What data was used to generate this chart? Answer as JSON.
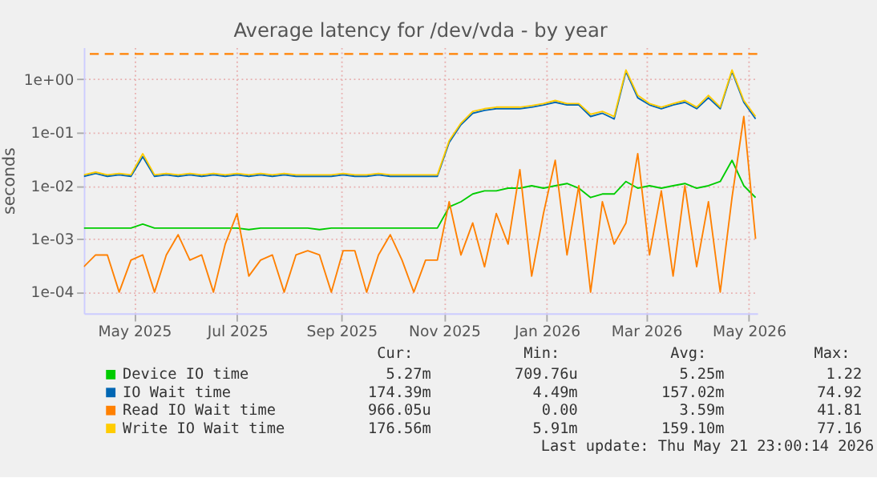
{
  "chart_data": {
    "type": "line",
    "title": "Average latency for /dev/vda - by year",
    "ylabel": "seconds",
    "log": "y",
    "grid": true,
    "legend": "bottom",
    "marker": "none",
    "line_style": "solid",
    "xlim": [
      "2025-04-16",
      "2026-05-21"
    ],
    "xticks": [
      {
        "value": "2025-05-16",
        "label": "May 2025"
      },
      {
        "value": "2025-07-16",
        "label": "Jul 2025"
      },
      {
        "value": "2025-09-16",
        "label": "Sep 2025"
      },
      {
        "value": "2025-11-16",
        "label": "Nov 2025"
      },
      {
        "value": "2026-01-16",
        "label": "Jan 2026"
      },
      {
        "value": "2026-03-16",
        "label": "Mar 2026"
      },
      {
        "value": "2026-05-16",
        "label": "May 2026"
      }
    ],
    "ylim": [
      4e-05,
      4
    ],
    "yticks": [
      {
        "value": 0.0001,
        "label": "1e-04"
      },
      {
        "value": 0.001,
        "label": "1e-03"
      },
      {
        "value": 0.01,
        "label": "1e-02"
      },
      {
        "value": 0.1,
        "label": "1e-01"
      },
      {
        "value": 1,
        "label": "1e+00"
      }
    ],
    "x": [
      "2025-04-16",
      "2025-04-23",
      "2025-04-30",
      "2025-05-07",
      "2025-05-14",
      "2025-05-21",
      "2025-05-28",
      "2025-06-04",
      "2025-06-11",
      "2025-06-18",
      "2025-06-25",
      "2025-07-02",
      "2025-07-09",
      "2025-07-16",
      "2025-07-23",
      "2025-07-30",
      "2025-08-06",
      "2025-08-13",
      "2025-08-20",
      "2025-08-27",
      "2025-09-03",
      "2025-09-10",
      "2025-09-17",
      "2025-09-24",
      "2025-10-01",
      "2025-10-08",
      "2025-10-15",
      "2025-10-22",
      "2025-10-29",
      "2025-11-05",
      "2025-11-12",
      "2025-11-19",
      "2025-11-26",
      "2025-12-03",
      "2025-12-10",
      "2025-12-17",
      "2025-12-24",
      "2025-12-31",
      "2026-01-07",
      "2026-01-14",
      "2026-01-21",
      "2026-01-28",
      "2026-02-04",
      "2026-02-11",
      "2026-02-18",
      "2026-02-25",
      "2026-03-04",
      "2026-03-11",
      "2026-03-18",
      "2026-03-25",
      "2026-04-01",
      "2026-04-08",
      "2026-04-15",
      "2026-04-22",
      "2026-04-29",
      "2026-05-06",
      "2026-05-13",
      "2026-05-20"
    ],
    "series": [
      {
        "name": "Device IO time",
        "color": "#00cc00",
        "values": [
          0.0016,
          0.0016,
          0.0016,
          0.0016,
          0.0016,
          0.0019,
          0.0016,
          0.0016,
          0.0016,
          0.0016,
          0.0016,
          0.0016,
          0.0016,
          0.0016,
          0.0015,
          0.0016,
          0.0016,
          0.0016,
          0.0016,
          0.0016,
          0.0015,
          0.0016,
          0.0016,
          0.0016,
          0.0016,
          0.0016,
          0.0016,
          0.0016,
          0.0016,
          0.0016,
          0.0016,
          0.004,
          0.005,
          0.007,
          0.008,
          0.008,
          0.009,
          0.009,
          0.01,
          0.009,
          0.01,
          0.011,
          0.009,
          0.006,
          0.007,
          0.007,
          0.012,
          0.009,
          0.01,
          0.009,
          0.01,
          0.011,
          0.009,
          0.01,
          0.012,
          0.03,
          0.01,
          0.006
        ]
      },
      {
        "name": "IO Wait time",
        "color": "#0066b3",
        "values": [
          0.015,
          0.017,
          0.015,
          0.016,
          0.015,
          0.035,
          0.015,
          0.016,
          0.015,
          0.016,
          0.015,
          0.016,
          0.015,
          0.016,
          0.015,
          0.016,
          0.015,
          0.016,
          0.015,
          0.015,
          0.015,
          0.015,
          0.016,
          0.015,
          0.015,
          0.016,
          0.015,
          0.015,
          0.015,
          0.015,
          0.015,
          0.065,
          0.14,
          0.23,
          0.26,
          0.28,
          0.28,
          0.28,
          0.3,
          0.33,
          0.37,
          0.33,
          0.33,
          0.2,
          0.23,
          0.18,
          1.4,
          0.45,
          0.33,
          0.28,
          0.33,
          0.37,
          0.28,
          0.45,
          0.28,
          1.4,
          0.37,
          0.18
        ]
      },
      {
        "name": "Read IO Wait time",
        "color": "#ff8000",
        "values": [
          0.0003,
          0.0005,
          0.0005,
          0.0001,
          0.0004,
          0.0005,
          0.0001,
          0.0005,
          0.0012,
          0.0004,
          0.0005,
          0.0001,
          0.0008,
          0.003,
          0.0002,
          0.0004,
          0.0005,
          0.0001,
          0.0005,
          0.0006,
          0.0005,
          0.0001,
          0.0006,
          0.0006,
          0.0001,
          0.0005,
          0.0012,
          0.0004,
          0.0001,
          0.0004,
          0.0004,
          0.005,
          0.0005,
          0.002,
          0.0003,
          0.003,
          0.0008,
          0.02,
          0.0002,
          0.003,
          0.03,
          0.0005,
          0.01,
          0.0001,
          0.005,
          0.0008,
          0.002,
          0.04,
          0.0005,
          0.008,
          0.0002,
          0.01,
          0.0003,
          0.005,
          0.0001,
          0.006,
          0.2,
          0.001
        ]
      },
      {
        "name": "Write IO Wait time",
        "color": "#ffcc00",
        "values": [
          0.016,
          0.018,
          0.016,
          0.017,
          0.016,
          0.04,
          0.016,
          0.017,
          0.016,
          0.017,
          0.016,
          0.017,
          0.016,
          0.017,
          0.016,
          0.017,
          0.016,
          0.017,
          0.016,
          0.016,
          0.016,
          0.016,
          0.017,
          0.016,
          0.016,
          0.017,
          0.016,
          0.016,
          0.016,
          0.016,
          0.016,
          0.07,
          0.15,
          0.25,
          0.28,
          0.3,
          0.3,
          0.3,
          0.32,
          0.35,
          0.4,
          0.35,
          0.35,
          0.22,
          0.25,
          0.2,
          1.5,
          0.5,
          0.35,
          0.3,
          0.35,
          0.4,
          0.3,
          0.5,
          0.3,
          1.5,
          0.4,
          0.2
        ]
      }
    ],
    "ref_lines": [
      {
        "axis": "y",
        "value": 3,
        "color": "#ff8000",
        "line_style": "dashed"
      }
    ],
    "annotations": [
      "Cur:",
      "Min:",
      "Avg:",
      "Max:",
      "5.27m",
      "709.76u",
      "5.25m",
      "1.22",
      "174.39m",
      "4.49m",
      "157.02m",
      "74.92",
      "966.05u",
      "0.00",
      "3.59m",
      "41.81",
      "176.56m",
      "5.91m",
      "159.10m",
      "77.16",
      "Last update: Thu May 21 23:00:14 2026"
    ]
  }
}
